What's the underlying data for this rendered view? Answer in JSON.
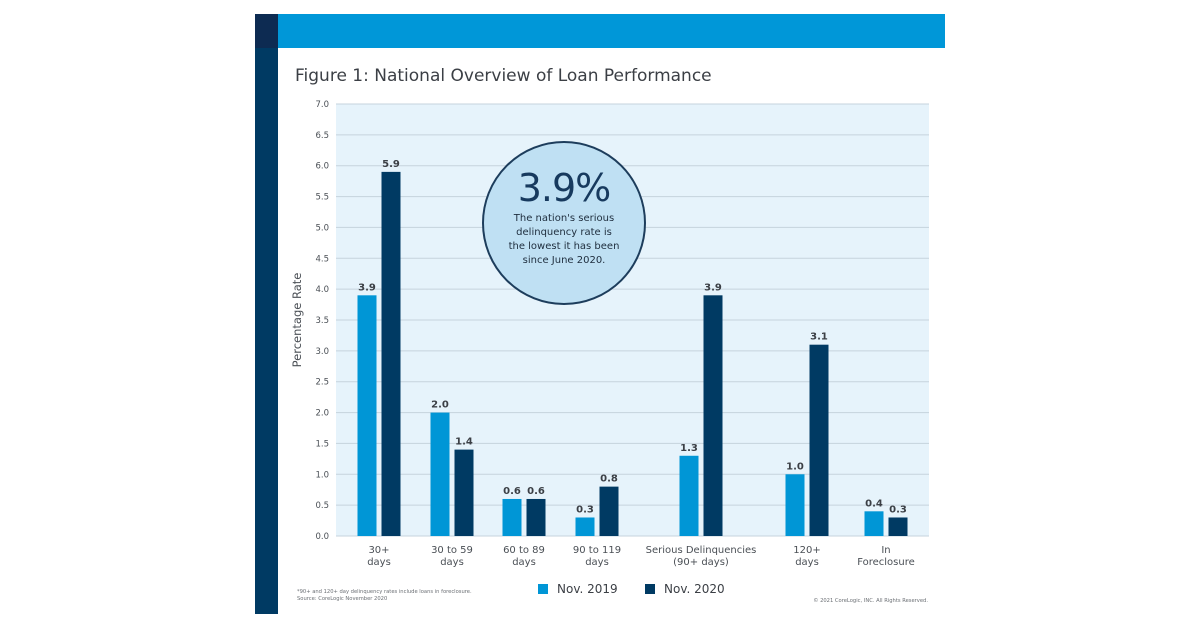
{
  "figure": {
    "title": "Figure 1: National Overview of Loan Performance",
    "footnote_line1": "*90+ and 120+ day delinquency rates include loans in foreclosure.",
    "footnote_line2": "Source: CoreLogic November 2020",
    "copyright": "© 2021 CoreLogic, INC. All Rights Reserved."
  },
  "callout": {
    "value": "3.9%",
    "text": "The nation's serious delinquency rate is the lowest it has been since June 2020."
  },
  "colors": {
    "nov2019": "#0096d6",
    "nov2020": "#003a63",
    "plot_bg": "#e6f3fb",
    "grid": "#c5d3dd"
  },
  "chart_data": {
    "type": "bar",
    "title": "Figure 1: National Overview of Loan Performance",
    "ylabel": "Percentage Rate",
    "xlabel": "",
    "ylim": [
      0,
      7
    ],
    "ytick_step": 0.5,
    "grid": true,
    "legend_position": "bottom",
    "categories": [
      [
        "30+",
        "days"
      ],
      [
        "30 to 59",
        "days"
      ],
      [
        "60 to 89",
        "days"
      ],
      [
        "90 to 119",
        "days"
      ],
      [
        "Serious Delinquencies",
        "(90+ days)"
      ],
      [
        "120+",
        "days"
      ],
      [
        "In",
        "Foreclosure"
      ]
    ],
    "series": [
      {
        "name": "Nov. 2019",
        "values": [
          3.9,
          2.0,
          0.6,
          0.3,
          1.3,
          1.0,
          0.4
        ],
        "labels": [
          "3.9",
          "2.0",
          "0.6",
          "0.3",
          "1.3",
          "1.0",
          "0.4"
        ]
      },
      {
        "name": "Nov. 2020",
        "values": [
          5.9,
          1.4,
          0.6,
          0.8,
          3.9,
          3.1,
          0.3
        ],
        "labels": [
          "5.9",
          "1.4",
          "0.6",
          "0.8",
          "3.9",
          "3.1",
          "0.3"
        ]
      }
    ]
  }
}
